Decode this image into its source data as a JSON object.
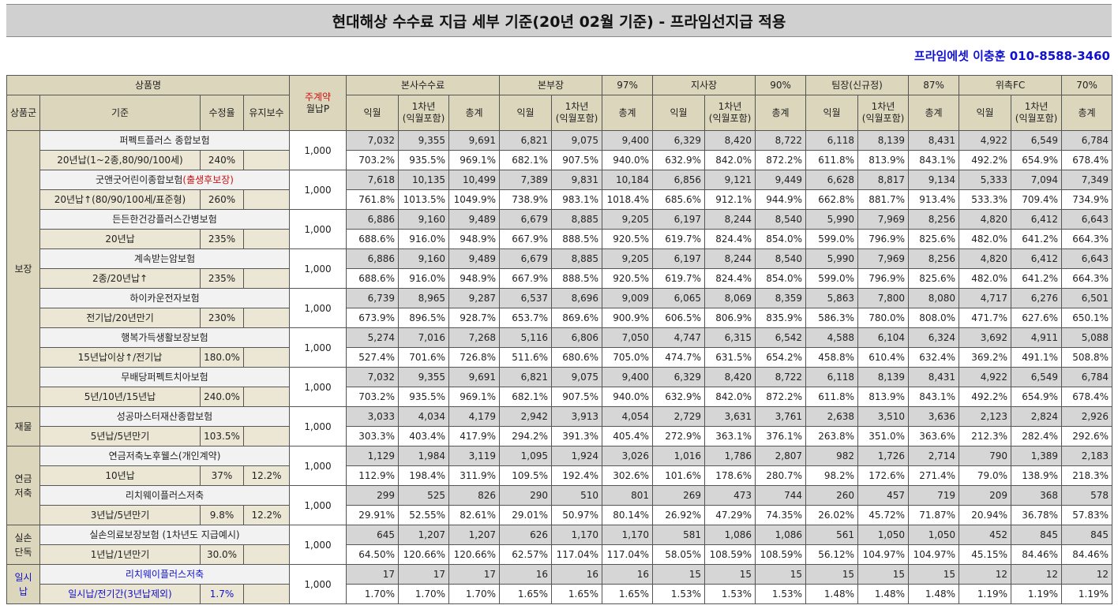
{
  "title": "현대해상 수수료 지급 세부 기준(20년 02월 기준) - 프라임선지급 적용",
  "contact": "프라임에셋 이충훈 010-8588-3460",
  "header": {
    "product_label": "상품명",
    "main_premium_top": "주계약",
    "main_premium_bottom": "월납P",
    "group_col": "상품군",
    "criteria_col": "기준",
    "rate_col": "수정율",
    "maint_col": "유지보수",
    "sections": [
      {
        "name": "본사수수료",
        "pct": ""
      },
      {
        "name": "본부장",
        "pct": "97%"
      },
      {
        "name": "지사장",
        "pct": "90%"
      },
      {
        "name": "팀장(신규정)",
        "pct": "87%"
      },
      {
        "name": "위촉FC",
        "pct": "70%"
      }
    ],
    "sub": {
      "a": "익월",
      "b1": "1차년",
      "b2": "(익월포함)",
      "c": "총계"
    }
  },
  "groups": [
    {
      "label": "보장",
      "rows": 7
    },
    {
      "label": "재물",
      "rows": 1
    },
    {
      "label": "연금\n저축",
      "rows": 2
    },
    {
      "label": "실손\n단독",
      "rows": 1
    },
    {
      "label": "일시납",
      "rows": 1
    }
  ],
  "products": [
    {
      "name": "퍼펙트플러스 종합보험",
      "name_red": "",
      "criteria": "20년납(1~2종,80/90/100세)",
      "rate": "240%",
      "maint": "",
      "premium": "1,000",
      "values": [
        "7,032",
        "9,355",
        "9,691",
        "6,821",
        "9,075",
        "9,400",
        "6,329",
        "8,420",
        "8,722",
        "6,118",
        "8,139",
        "8,431",
        "4,922",
        "6,549",
        "6,784"
      ],
      "pcts": [
        "703.2%",
        "935.5%",
        "969.1%",
        "682.1%",
        "907.5%",
        "940.0%",
        "632.9%",
        "842.0%",
        "872.2%",
        "611.8%",
        "813.9%",
        "843.1%",
        "492.2%",
        "654.9%",
        "678.4%"
      ]
    },
    {
      "name": "굿앤굿어린이종합보험",
      "name_red": "(출생후보장)",
      "criteria": "20년납↑(80/90/100세/표준형)",
      "rate": "260%",
      "maint": "",
      "premium": "1,000",
      "values": [
        "7,618",
        "10,135",
        "10,499",
        "7,389",
        "9,831",
        "10,184",
        "6,856",
        "9,121",
        "9,449",
        "6,628",
        "8,817",
        "9,134",
        "5,333",
        "7,094",
        "7,349"
      ],
      "pcts": [
        "761.8%",
        "1013.5%",
        "1049.9%",
        "738.9%",
        "983.1%",
        "1018.4%",
        "685.6%",
        "912.1%",
        "944.9%",
        "662.8%",
        "881.7%",
        "913.4%",
        "533.3%",
        "709.4%",
        "734.9%"
      ]
    },
    {
      "name": "든든한건강플러스간병보험",
      "name_red": "",
      "criteria": "20년납",
      "rate": "235%",
      "maint": "",
      "premium": "1,000",
      "values": [
        "6,886",
        "9,160",
        "9,489",
        "6,679",
        "8,885",
        "9,205",
        "6,197",
        "8,244",
        "8,540",
        "5,990",
        "7,969",
        "8,256",
        "4,820",
        "6,412",
        "6,643"
      ],
      "pcts": [
        "688.6%",
        "916.0%",
        "948.9%",
        "667.9%",
        "888.5%",
        "920.5%",
        "619.7%",
        "824.4%",
        "854.0%",
        "599.0%",
        "796.9%",
        "825.6%",
        "482.0%",
        "641.2%",
        "664.3%"
      ]
    },
    {
      "name": "계속받는암보험",
      "name_red": "",
      "criteria": "2종/20년납↑",
      "rate": "235%",
      "maint": "",
      "premium": "1,000",
      "values": [
        "6,886",
        "9,160",
        "9,489",
        "6,679",
        "8,885",
        "9,205",
        "6,197",
        "8,244",
        "8,540",
        "5,990",
        "7,969",
        "8,256",
        "4,820",
        "6,412",
        "6,643"
      ],
      "pcts": [
        "688.6%",
        "916.0%",
        "948.9%",
        "667.9%",
        "888.5%",
        "920.5%",
        "619.7%",
        "824.4%",
        "854.0%",
        "599.0%",
        "796.9%",
        "825.6%",
        "482.0%",
        "641.2%",
        "664.3%"
      ]
    },
    {
      "name": "하이카운전자보험",
      "name_red": "",
      "criteria": "전기납/20년만기",
      "rate": "230%",
      "maint": "",
      "premium": "1,000",
      "values": [
        "6,739",
        "8,965",
        "9,287",
        "6,537",
        "8,696",
        "9,009",
        "6,065",
        "8,069",
        "8,359",
        "5,863",
        "7,800",
        "8,080",
        "4,717",
        "6,276",
        "6,501"
      ],
      "pcts": [
        "673.9%",
        "896.5%",
        "928.7%",
        "653.7%",
        "869.6%",
        "900.9%",
        "606.5%",
        "806.9%",
        "835.9%",
        "586.3%",
        "780.0%",
        "808.0%",
        "471.7%",
        "627.6%",
        "650.1%"
      ]
    },
    {
      "name": "행복가득생활보장보험",
      "name_red": "",
      "criteria": "15년납이상↑/전기납",
      "rate": "180.0%",
      "maint": "",
      "premium": "1,000",
      "values": [
        "5,274",
        "7,016",
        "7,268",
        "5,116",
        "6,806",
        "7,050",
        "4,747",
        "6,315",
        "6,542",
        "4,588",
        "6,104",
        "6,324",
        "3,692",
        "4,911",
        "5,088"
      ],
      "pcts": [
        "527.4%",
        "701.6%",
        "726.8%",
        "511.6%",
        "680.6%",
        "705.0%",
        "474.7%",
        "631.5%",
        "654.2%",
        "458.8%",
        "610.4%",
        "632.4%",
        "369.2%",
        "491.1%",
        "508.8%"
      ]
    },
    {
      "name": "무배당퍼펙트치아보험",
      "name_red": "",
      "criteria": "5년/10년/15년납",
      "rate": "240.0%",
      "maint": "",
      "premium": "1,000",
      "values": [
        "7,032",
        "9,355",
        "9,691",
        "6,821",
        "9,075",
        "9,400",
        "6,329",
        "8,420",
        "8,722",
        "6,118",
        "8,139",
        "8,431",
        "4,922",
        "6,549",
        "6,784"
      ],
      "pcts": [
        "703.2%",
        "935.5%",
        "969.1%",
        "682.1%",
        "907.5%",
        "940.0%",
        "632.9%",
        "842.0%",
        "872.2%",
        "611.8%",
        "813.9%",
        "843.1%",
        "492.2%",
        "654.9%",
        "678.4%"
      ]
    },
    {
      "name": "성공마스터재산종합보험",
      "name_red": "",
      "criteria": "5년납/5년만기",
      "rate": "103.5%",
      "maint": "",
      "premium": "1,000",
      "values": [
        "3,033",
        "4,034",
        "4,179",
        "2,942",
        "3,913",
        "4,054",
        "2,729",
        "3,631",
        "3,761",
        "2,638",
        "3,510",
        "3,636",
        "2,123",
        "2,824",
        "2,926"
      ],
      "pcts": [
        "303.3%",
        "403.4%",
        "417.9%",
        "294.2%",
        "391.3%",
        "405.4%",
        "272.9%",
        "363.1%",
        "376.1%",
        "263.8%",
        "351.0%",
        "363.6%",
        "212.3%",
        "282.4%",
        "292.6%"
      ]
    },
    {
      "name": "연금저축노후웰스(개인계약)",
      "name_red": "",
      "criteria": "10년납",
      "rate": "37%",
      "maint": "12.2%",
      "premium": "1,000",
      "values": [
        "1,129",
        "1,984",
        "3,119",
        "1,095",
        "1,924",
        "3,026",
        "1,016",
        "1,786",
        "2,807",
        "982",
        "1,726",
        "2,714",
        "790",
        "1,389",
        "2,183"
      ],
      "pcts": [
        "112.9%",
        "198.4%",
        "311.9%",
        "109.5%",
        "192.4%",
        "302.6%",
        "101.6%",
        "178.6%",
        "280.7%",
        "98.2%",
        "172.6%",
        "271.4%",
        "79.0%",
        "138.9%",
        "218.3%"
      ]
    },
    {
      "name": "리치웨이플러스저축",
      "name_red": "",
      "criteria": "3년납/5년만기",
      "rate": "9.8%",
      "maint": "12.2%",
      "premium": "1,000",
      "values": [
        "299",
        "525",
        "826",
        "290",
        "510",
        "801",
        "269",
        "473",
        "744",
        "260",
        "457",
        "719",
        "209",
        "368",
        "578"
      ],
      "pcts": [
        "29.91%",
        "52.55%",
        "82.61%",
        "29.01%",
        "50.97%",
        "80.14%",
        "26.92%",
        "47.29%",
        "74.35%",
        "26.02%",
        "45.72%",
        "71.87%",
        "20.94%",
        "36.78%",
        "57.83%"
      ]
    },
    {
      "name": "실손의료보장보험 (1차년도 지급예시)",
      "name_red": "",
      "criteria": "1년납/1년만기",
      "rate": "30.0%",
      "maint": "",
      "premium": "1,000",
      "values": [
        "645",
        "1,207",
        "1,207",
        "626",
        "1,170",
        "1,170",
        "581",
        "1,086",
        "1,086",
        "561",
        "1,050",
        "1,050",
        "452",
        "845",
        "845"
      ],
      "pcts": [
        "64.50%",
        "120.66%",
        "120.66%",
        "62.57%",
        "117.04%",
        "117.04%",
        "58.05%",
        "108.59%",
        "108.59%",
        "56.12%",
        "104.97%",
        "104.97%",
        "45.15%",
        "84.46%",
        "84.46%"
      ]
    },
    {
      "name": "리치웨이플러스저축",
      "name_red": "",
      "criteria": "일시납/전기간(3년납제외)",
      "rate": "1.7%",
      "maint": "",
      "premium": "1,000",
      "blue": true,
      "values": [
        "17",
        "17",
        "17",
        "16",
        "16",
        "16",
        "15",
        "15",
        "15",
        "15",
        "15",
        "15",
        "12",
        "12",
        "12"
      ],
      "pcts": [
        "1.70%",
        "1.70%",
        "1.70%",
        "1.65%",
        "1.65%",
        "1.65%",
        "1.53%",
        "1.53%",
        "1.53%",
        "1.48%",
        "1.48%",
        "1.48%",
        "1.19%",
        "1.19%",
        "1.19%"
      ]
    }
  ]
}
